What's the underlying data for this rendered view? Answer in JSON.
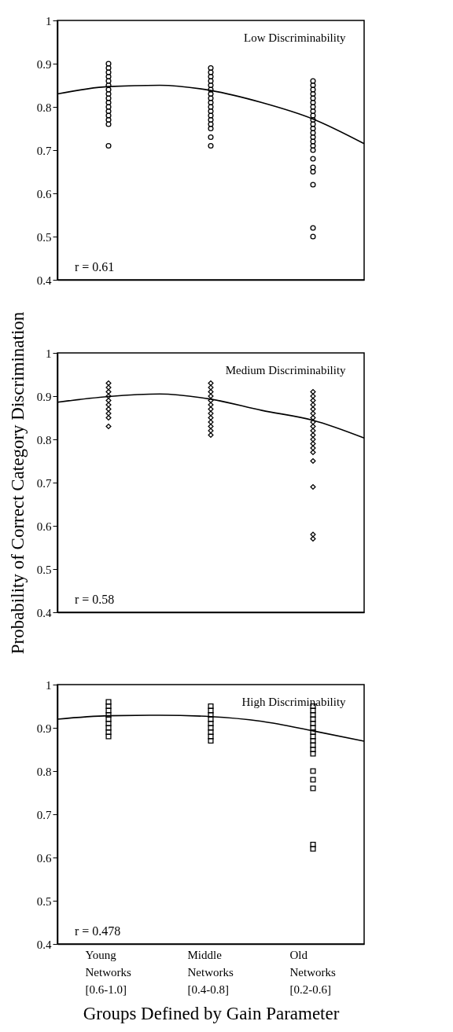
{
  "chart_data": [
    {
      "type": "scatter",
      "categories": [
        null,
        "Young Networks [0.6-1.0]",
        null,
        "Middle Networks [0.4-0.8]",
        null,
        "Old Networks [0.2-0.6]",
        null
      ],
      "ylim": [
        0.4,
        1
      ],
      "yticks": [
        0.4,
        0.5,
        0.6,
        0.7,
        0.8,
        0.9,
        1
      ],
      "tick_labels": "y",
      "annotations": [
        "Low Discriminability",
        "r = 0.61"
      ],
      "series": [
        {
          "color": "#000000",
          "x": [
            "Young Networks [0.6-1.0]",
            "Young Networks [0.6-1.0]",
            "Young Networks [0.6-1.0]",
            "Young Networks [0.6-1.0]",
            "Young Networks [0.6-1.0]",
            "Young Networks [0.6-1.0]",
            "Young Networks [0.6-1.0]",
            "Young Networks [0.6-1.0]",
            "Young Networks [0.6-1.0]",
            "Young Networks [0.6-1.0]",
            "Young Networks [0.6-1.0]",
            "Young Networks [0.6-1.0]",
            "Young Networks [0.6-1.0]",
            "Young Networks [0.6-1.0]",
            "Young Networks [0.6-1.0]",
            "Young Networks [0.6-1.0]"
          ],
          "values": [
            0.9,
            0.89,
            0.88,
            0.87,
            0.86,
            0.85,
            0.84,
            0.83,
            0.82,
            0.81,
            0.8,
            0.79,
            0.78,
            0.77,
            0.76,
            0.71
          ],
          "marker": "circle"
        },
        {
          "color": "#000000",
          "x": [
            "Middle Networks [0.4-0.8]",
            "Middle Networks [0.4-0.8]",
            "Middle Networks [0.4-0.8]",
            "Middle Networks [0.4-0.8]",
            "Middle Networks [0.4-0.8]",
            "Middle Networks [0.4-0.8]",
            "Middle Networks [0.4-0.8]",
            "Middle Networks [0.4-0.8]",
            "Middle Networks [0.4-0.8]",
            "Middle Networks [0.4-0.8]",
            "Middle Networks [0.4-0.8]",
            "Middle Networks [0.4-0.8]",
            "Middle Networks [0.4-0.8]",
            "Middle Networks [0.4-0.8]",
            "Middle Networks [0.4-0.8]",
            "Middle Networks [0.4-0.8]",
            "Middle Networks [0.4-0.8]"
          ],
          "values": [
            0.89,
            0.88,
            0.87,
            0.86,
            0.85,
            0.84,
            0.83,
            0.82,
            0.81,
            0.8,
            0.79,
            0.78,
            0.77,
            0.76,
            0.75,
            0.73,
            0.71
          ],
          "marker": "circle"
        },
        {
          "color": "#000000",
          "x": [
            "Old Networks [0.2-0.6]",
            "Old Networks [0.2-0.6]",
            "Old Networks [0.2-0.6]",
            "Old Networks [0.2-0.6]",
            "Old Networks [0.2-0.6]",
            "Old Networks [0.2-0.6]",
            "Old Networks [0.2-0.6]",
            "Old Networks [0.2-0.6]",
            "Old Networks [0.2-0.6]",
            "Old Networks [0.2-0.6]",
            "Old Networks [0.2-0.6]",
            "Old Networks [0.2-0.6]",
            "Old Networks [0.2-0.6]",
            "Old Networks [0.2-0.6]",
            "Old Networks [0.2-0.6]",
            "Old Networks [0.2-0.6]",
            "Old Networks [0.2-0.6]",
            "Old Networks [0.2-0.6]",
            "Old Networks [0.2-0.6]",
            "Old Networks [0.2-0.6]",
            "Old Networks [0.2-0.6]",
            "Old Networks [0.2-0.6]",
            "Old Networks [0.2-0.6]"
          ],
          "values": [
            0.86,
            0.85,
            0.84,
            0.83,
            0.82,
            0.81,
            0.8,
            0.79,
            0.78,
            0.77,
            0.76,
            0.75,
            0.74,
            0.73,
            0.72,
            0.71,
            0.7,
            0.68,
            0.66,
            0.65,
            0.62,
            0.52,
            0.5
          ],
          "marker": "circle"
        },
        {
          "type": "line",
          "color": "#000000",
          "values": [
            0.83,
            0.847,
            0.85,
            0.838,
            0.81,
            0.772,
            0.715
          ]
        }
      ]
    },
    {
      "type": "scatter",
      "categories": [
        null,
        "Young Networks [0.6-1.0]",
        null,
        "Middle Networks [0.4-0.8]",
        null,
        "Old Networks [0.2-0.6]",
        null
      ],
      "ylim": [
        0.4,
        1
      ],
      "yticks": [
        0.4,
        0.5,
        0.6,
        0.7,
        0.8,
        0.9,
        1
      ],
      "tick_labels": "y",
      "ylabel": "Probability of Correct Category Discrimination",
      "annotations": [
        "Medium Discriminability",
        "r = 0.58"
      ],
      "series": [
        {
          "color": "#000000",
          "x": [
            "Young Networks [0.6-1.0]",
            "Young Networks [0.6-1.0]",
            "Young Networks [0.6-1.0]",
            "Young Networks [0.6-1.0]",
            "Young Networks [0.6-1.0]",
            "Young Networks [0.6-1.0]",
            "Young Networks [0.6-1.0]",
            "Young Networks [0.6-1.0]",
            "Young Networks [0.6-1.0]",
            "Young Networks [0.6-1.0]"
          ],
          "values": [
            0.93,
            0.92,
            0.91,
            0.9,
            0.89,
            0.88,
            0.87,
            0.86,
            0.85,
            0.83
          ],
          "marker": "diamond"
        },
        {
          "color": "#000000",
          "x": [
            "Middle Networks [0.4-0.8]",
            "Middle Networks [0.4-0.8]",
            "Middle Networks [0.4-0.8]",
            "Middle Networks [0.4-0.8]",
            "Middle Networks [0.4-0.8]",
            "Middle Networks [0.4-0.8]",
            "Middle Networks [0.4-0.8]",
            "Middle Networks [0.4-0.8]",
            "Middle Networks [0.4-0.8]",
            "Middle Networks [0.4-0.8]",
            "Middle Networks [0.4-0.8]",
            "Middle Networks [0.4-0.8]",
            "Middle Networks [0.4-0.8]"
          ],
          "values": [
            0.93,
            0.92,
            0.91,
            0.9,
            0.89,
            0.88,
            0.87,
            0.86,
            0.85,
            0.84,
            0.83,
            0.82,
            0.81
          ],
          "marker": "diamond"
        },
        {
          "color": "#000000",
          "x": [
            "Old Networks [0.2-0.6]",
            "Old Networks [0.2-0.6]",
            "Old Networks [0.2-0.6]",
            "Old Networks [0.2-0.6]",
            "Old Networks [0.2-0.6]",
            "Old Networks [0.2-0.6]",
            "Old Networks [0.2-0.6]",
            "Old Networks [0.2-0.6]",
            "Old Networks [0.2-0.6]",
            "Old Networks [0.2-0.6]",
            "Old Networks [0.2-0.6]",
            "Old Networks [0.2-0.6]",
            "Old Networks [0.2-0.6]",
            "Old Networks [0.2-0.6]",
            "Old Networks [0.2-0.6]",
            "Old Networks [0.2-0.6]",
            "Old Networks [0.2-0.6]",
            "Old Networks [0.2-0.6]",
            "Old Networks [0.2-0.6]"
          ],
          "values": [
            0.91,
            0.9,
            0.89,
            0.88,
            0.87,
            0.86,
            0.85,
            0.84,
            0.83,
            0.82,
            0.81,
            0.8,
            0.79,
            0.78,
            0.77,
            0.75,
            0.69,
            0.58,
            0.57
          ],
          "marker": "diamond"
        },
        {
          "type": "line",
          "color": "#000000",
          "values": [
            0.886,
            0.899,
            0.905,
            0.893,
            0.867,
            0.844,
            0.803
          ]
        }
      ]
    },
    {
      "type": "scatter",
      "categories": [
        null,
        "Young Networks [0.6-1.0]",
        null,
        "Middle Networks [0.4-0.8]",
        null,
        "Old Networks [0.2-0.6]",
        null
      ],
      "ylim": [
        0.4,
        1
      ],
      "yticks": [
        0.4,
        0.5,
        0.6,
        0.7,
        0.8,
        0.9,
        1
      ],
      "xlabel": "Groups Defined by Gain Parameter",
      "annotations": [
        "High Discriminability",
        "r = 0.478"
      ],
      "series": [
        {
          "color": "#000000",
          "x": [
            "Young Networks [0.6-1.0]",
            "Young Networks [0.6-1.0]",
            "Young Networks [0.6-1.0]",
            "Young Networks [0.6-1.0]",
            "Young Networks [0.6-1.0]",
            "Young Networks [0.6-1.0]",
            "Young Networks [0.6-1.0]",
            "Young Networks [0.6-1.0]",
            "Young Networks [0.6-1.0]"
          ],
          "values": [
            0.96,
            0.95,
            0.94,
            0.93,
            0.92,
            0.91,
            0.9,
            0.89,
            0.88
          ],
          "marker": "square"
        },
        {
          "color": "#000000",
          "x": [
            "Middle Networks [0.4-0.8]",
            "Middle Networks [0.4-0.8]",
            "Middle Networks [0.4-0.8]",
            "Middle Networks [0.4-0.8]",
            "Middle Networks [0.4-0.8]",
            "Middle Networks [0.4-0.8]",
            "Middle Networks [0.4-0.8]",
            "Middle Networks [0.4-0.8]",
            "Middle Networks [0.4-0.8]"
          ],
          "values": [
            0.95,
            0.94,
            0.93,
            0.92,
            0.91,
            0.9,
            0.89,
            0.88,
            0.87
          ],
          "marker": "square"
        },
        {
          "color": "#000000",
          "x": [
            "Old Networks [0.2-0.6]",
            "Old Networks [0.2-0.6]",
            "Old Networks [0.2-0.6]",
            "Old Networks [0.2-0.6]",
            "Old Networks [0.2-0.6]",
            "Old Networks [0.2-0.6]",
            "Old Networks [0.2-0.6]",
            "Old Networks [0.2-0.6]",
            "Old Networks [0.2-0.6]",
            "Old Networks [0.2-0.6]",
            "Old Networks [0.2-0.6]",
            "Old Networks [0.2-0.6]",
            "Old Networks [0.2-0.6]",
            "Old Networks [0.2-0.6]",
            "Old Networks [0.2-0.6]",
            "Old Networks [0.2-0.6]",
            "Old Networks [0.2-0.6]"
          ],
          "values": [
            0.95,
            0.94,
            0.93,
            0.92,
            0.91,
            0.9,
            0.89,
            0.88,
            0.87,
            0.86,
            0.85,
            0.84,
            0.8,
            0.78,
            0.76,
            0.63,
            0.62
          ],
          "marker": "square"
        },
        {
          "type": "line",
          "color": "#000000",
          "values": [
            0.92,
            0.928,
            0.929,
            0.926,
            0.915,
            0.893,
            0.869
          ]
        }
      ]
    }
  ]
}
